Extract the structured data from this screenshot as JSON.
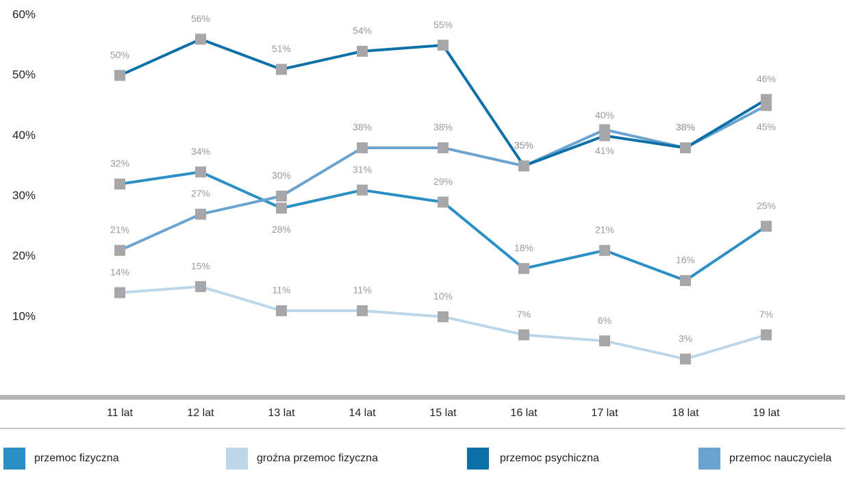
{
  "chart_data": {
    "type": "line",
    "categories": [
      "11 lat",
      "12 lat",
      "13 lat",
      "14 lat",
      "15 lat",
      "16 lat",
      "17 lat",
      "18 lat",
      "19 lat"
    ],
    "series": [
      {
        "name": "przemoc fizyczna",
        "color": "#2b8fc6",
        "values": [
          32,
          34,
          28,
          31,
          29,
          18,
          21,
          16,
          25
        ],
        "value_labels": [
          "32%",
          "34%",
          "28%",
          "31%",
          "29%",
          "18%",
          "21%",
          "16%",
          "25%"
        ]
      },
      {
        "name": "groźna przemoc fizyczna",
        "color": "#bcd6ea",
        "values": [
          14,
          15,
          11,
          11,
          10,
          7,
          6,
          3,
          7
        ],
        "value_labels": [
          "14%",
          "15%",
          "11%",
          "11%",
          "10%",
          "7%",
          "6%",
          "3%",
          "7%"
        ]
      },
      {
        "name": "przemoc psychiczna",
        "color": "#0b6fa8",
        "values": [
          50,
          56,
          51,
          54,
          55,
          35,
          40,
          38,
          46
        ],
        "value_labels": [
          "50%",
          "56%",
          "51%",
          "54%",
          "55%",
          "35%",
          "40%",
          "38%",
          "46%"
        ]
      },
      {
        "name": "przemoc nauczyciela",
        "color": "#6aa3cf",
        "values": [
          21,
          27,
          30,
          38,
          38,
          35,
          41,
          38,
          45
        ],
        "value_labels": [
          "21%",
          "27%",
          "30%",
          "38%",
          "38%",
          "35%",
          "41%",
          "38%",
          "45%"
        ]
      }
    ],
    "ylim": [
      0,
      60
    ],
    "yticks": [
      {
        "value": 10,
        "label": "10%"
      },
      {
        "value": 20,
        "label": "20%"
      },
      {
        "value": 30,
        "label": "30%"
      },
      {
        "value": 40,
        "label": "40%"
      },
      {
        "value": 50,
        "label": "50%"
      },
      {
        "value": 60,
        "label": "60%"
      }
    ],
    "grid": false,
    "marker_color": "#a7a7a9"
  }
}
